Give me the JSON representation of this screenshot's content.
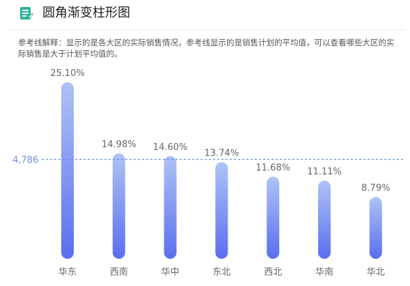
{
  "header": {
    "title": "圆角渐变柱形图",
    "icon": "notepad-icon",
    "icon_color": "#2fb39a"
  },
  "note": "参考线解释：显示的是各大区的实际销售情况，参考线显示的是销售计划的平均值，可以查看哪些大区的实际销售是大于计划平均值的。",
  "chart_data": {
    "type": "bar",
    "categories": [
      "华东",
      "西南",
      "华中",
      "东北",
      "西北",
      "华南",
      "华北"
    ],
    "values": [
      25.1,
      14.98,
      14.6,
      13.74,
      11.68,
      11.11,
      8.79
    ],
    "value_labels": [
      "25.10%",
      "14.98%",
      "14.60%",
      "13.74%",
      "11.68%",
      "11.11%",
      "8.79%"
    ],
    "reference_line": {
      "label": "4,786",
      "value": 14.14,
      "style": "dashed",
      "color": "#6b8ee6"
    },
    "ylim": [
      0,
      25.1
    ],
    "grid": false,
    "bar_gradient": {
      "top": "#aec3f5",
      "bottom": "#5a6ef0"
    },
    "label_color": "#666666"
  }
}
